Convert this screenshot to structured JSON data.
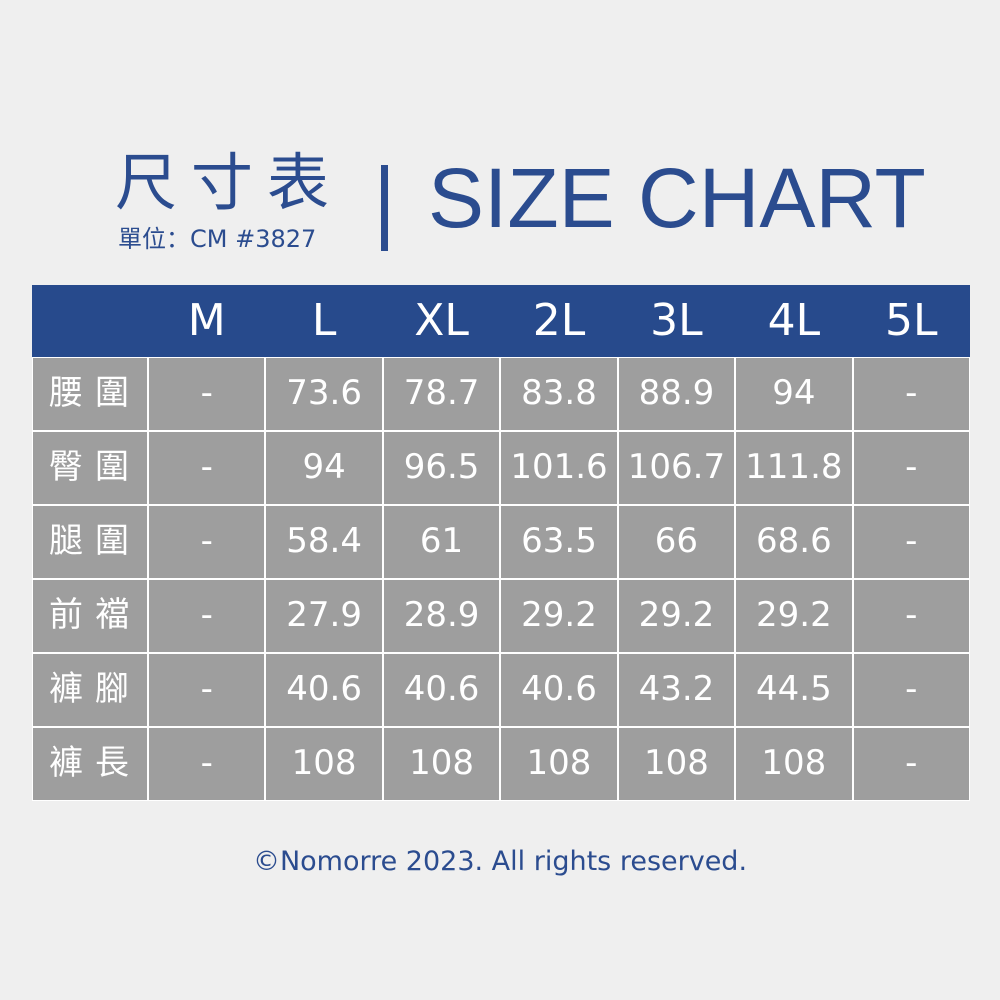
{
  "header": {
    "title_zh": "尺寸表",
    "unit": "單位：CM #3827",
    "title_en": "SIZE CHART"
  },
  "table": {
    "columns": [
      "M",
      "L",
      "XL",
      "2L",
      "3L",
      "4L",
      "5L"
    ],
    "rows": [
      {
        "label": "腰圍",
        "cells": [
          "-",
          73.6,
          78.7,
          83.8,
          88.9,
          94,
          "-"
        ]
      },
      {
        "label": "臀圍",
        "cells": [
          "-",
          94,
          96.5,
          101.6,
          106.7,
          111.8,
          "-"
        ]
      },
      {
        "label": "腿圍",
        "cells": [
          "-",
          58.4,
          61,
          63.5,
          66,
          68.6,
          "-"
        ]
      },
      {
        "label": "前襠",
        "cells": [
          "-",
          27.9,
          28.9,
          29.2,
          29.2,
          29.2,
          "-"
        ]
      },
      {
        "label": "褲腳",
        "cells": [
          "-",
          40.6,
          40.6,
          40.6,
          43.2,
          44.5,
          "-"
        ]
      },
      {
        "label": "褲長",
        "cells": [
          "-",
          108,
          108,
          108,
          108,
          108,
          "-"
        ]
      }
    ]
  },
  "footer": "©Nomorre 2023. All rights reserved."
}
